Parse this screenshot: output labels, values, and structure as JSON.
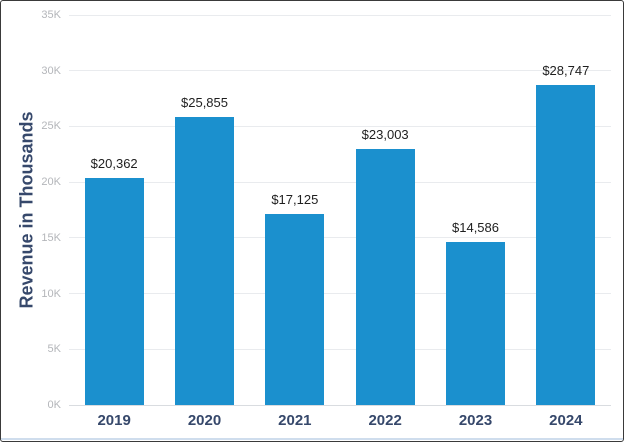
{
  "chart_data": {
    "type": "bar",
    "title": "",
    "xlabel": "",
    "ylabel": "Revenue in Thousands",
    "categories": [
      "2019",
      "2020",
      "2021",
      "2022",
      "2023",
      "2024"
    ],
    "values": [
      20362,
      25855,
      17125,
      23003,
      14586,
      28747
    ],
    "value_labels": [
      "$20,362",
      "$25,855",
      "$17,125",
      "$23,003",
      "$14,586",
      "$28,747"
    ],
    "ylim": [
      0,
      35000
    ],
    "ytick_step": 5000,
    "ytick_labels": [
      "0K",
      "5K",
      "10K",
      "15K",
      "20K",
      "25K",
      "30K",
      "35K"
    ],
    "grid": true,
    "legend": "none",
    "colors": {
      "bar": "#1b90ce",
      "axis_label": "#36486b",
      "tick_label": "#b4b6ba",
      "gridline": "#e9ebee",
      "value_label": "#1f1f1f",
      "frame_border": "#3a3a3a",
      "background": "#ffffff"
    }
  }
}
